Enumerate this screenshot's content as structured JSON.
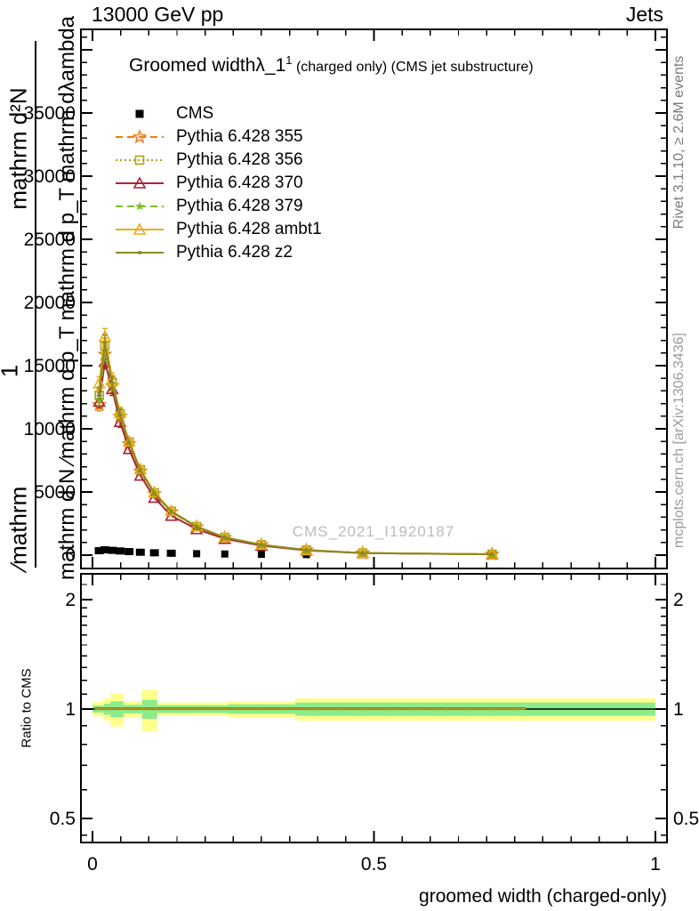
{
  "header": {
    "left": "13000 GeV pp",
    "right": "Jets"
  },
  "main_panel": {
    "title": "Groomed width",
    "title_symbol": "λ_1",
    "title_superscript": "1",
    "title_suffix": " (charged only) (CMS jet substructure)",
    "watermark": "CMS_2021_I1920187",
    "y_label_fraction_top": "mathrm d²N",
    "y_label_one": "1",
    "y_label_fraction_bottom": "∕mathrm",
    "y_label_inner": "mathrm d N ∕mathrm d p_T mathrm d p_T mathrm dλambda"
  },
  "right_margin": {
    "rivet_text": "Rivet 3.1.10, ≥ 2.6M events",
    "mcplots_text": "mcplots.cern.ch [arXiv:1306.3436]"
  },
  "ratio_panel": {
    "y_label": "Ratio to CMS"
  },
  "x_axis": {
    "title": "groomed width (charged-only)"
  },
  "legend": [
    {
      "id": "cms",
      "label": "CMS",
      "color": "#000000",
      "marker": "filled-square",
      "line": "none"
    },
    {
      "id": "pythia-355",
      "label": "Pythia 6.428 355",
      "color": "#ee7b11",
      "marker": "open-star",
      "line": "dashed"
    },
    {
      "id": "pythia-356",
      "label": "Pythia 6.428 356",
      "color": "#a6a51c",
      "marker": "open-square",
      "line": "dotted"
    },
    {
      "id": "pythia-370",
      "label": "Pythia 6.428 370",
      "color": "#a92433",
      "marker": "open-triangle",
      "line": "solid"
    },
    {
      "id": "pythia-379",
      "label": "Pythia 6.428 379",
      "color": "#7dbd26",
      "marker": "filled-star",
      "line": "dashed"
    },
    {
      "id": "pythia-ambt1",
      "label": "Pythia 6.428 ambt1",
      "color": "#f2a918",
      "marker": "open-triangle",
      "line": "solid"
    },
    {
      "id": "pythia-z2",
      "label": "Pythia 6.428 z2",
      "color": "#8a8b1e",
      "marker": "dot",
      "line": "solid"
    }
  ],
  "chart_data": {
    "type": "line",
    "title": "Groomed width λ_1¹ (charged only) (CMS jet substructure)",
    "xlabel": "groomed width (charged-only)",
    "ylabel": "mathrm d²N / mathrm d p_T mathrm dλambda",
    "xlim": [
      -0.02,
      1.02
    ],
    "ylim": [
      0,
      41600
    ],
    "y_ticks": [
      0,
      5000,
      10000,
      15000,
      20000,
      25000,
      30000,
      35000
    ],
    "y_minor_step": 1000,
    "x_ticks": [
      0,
      0.5,
      1
    ],
    "x_tick_labels": [
      "0",
      "0.5",
      "1"
    ],
    "x_minor_step": 0.05,
    "x": [
      0.012,
      0.022,
      0.035,
      0.049,
      0.065,
      0.085,
      0.11,
      0.14,
      0.185,
      0.235,
      0.3,
      0.38,
      0.48,
      0.71
    ],
    "series": [
      {
        "id": "pythia-355",
        "name": "Pythia 6.428 355",
        "color": "#ee7b11",
        "line": "dashed",
        "marker": "open-star",
        "values": [
          11900,
          15900,
          13400,
          11000,
          8800,
          6640,
          4850,
          3410,
          2230,
          1385,
          812,
          396,
          168,
          69
        ]
      },
      {
        "id": "pythia-356",
        "name": "Pythia 6.428 356",
        "color": "#a6a51c",
        "line": "dotted",
        "marker": "open-square",
        "values": [
          12650,
          16550,
          13700,
          11200,
          8950,
          6760,
          4930,
          3470,
          2260,
          1408,
          824,
          402,
          171,
          70
        ]
      },
      {
        "id": "pythia-370",
        "name": "Pythia 6.428 370",
        "color": "#a92433",
        "line": "solid",
        "marker": "open-triangle",
        "values": [
          12150,
          15300,
          13150,
          10550,
          8400,
          6300,
          4550,
          3120,
          2060,
          1290,
          760,
          370,
          158,
          64
        ]
      },
      {
        "id": "pythia-379",
        "name": "Pythia 6.428 379",
        "color": "#7dbd26",
        "line": "dashed",
        "marker": "filled-star",
        "values": [
          12350,
          16200,
          13550,
          11050,
          8850,
          6700,
          4890,
          3440,
          2245,
          1398,
          818,
          399,
          169,
          70
        ]
      },
      {
        "id": "pythia-ambt1",
        "name": "Pythia 6.428 ambt1",
        "color": "#f2a918",
        "line": "solid",
        "marker": "open-triangle",
        "values": [
          13600,
          17300,
          13900,
          11250,
          9000,
          6810,
          4960,
          3490,
          2275,
          1415,
          828,
          404,
          172,
          71
        ]
      },
      {
        "id": "pythia-z2",
        "name": "Pythia 6.428 z2",
        "color": "#8a8b1e",
        "line": "solid",
        "marker": "dot",
        "values": [
          12800,
          16800,
          13600,
          11100,
          8900,
          6700,
          4900,
          3450,
          2250,
          1400,
          820,
          400,
          170,
          70
        ]
      }
    ],
    "cms_data": {
      "id": "cms",
      "name": "CMS",
      "color": "#000000",
      "marker": "filled-square",
      "values": [
        350,
        420,
        380,
        330,
        280,
        230,
        185,
        150,
        115,
        90,
        65,
        45,
        30,
        18
      ]
    },
    "ratio": {
      "scale": "log",
      "range": [
        0.43,
        2.35
      ],
      "ticks": [
        0.5,
        1,
        2
      ],
      "tick_labels": [
        "0.5",
        "1",
        "2"
      ],
      "minor_ticks": [
        0.45,
        0.6,
        0.7,
        0.8,
        0.9,
        1.1,
        1.2,
        1.3,
        1.4,
        1.5,
        1.6,
        1.7,
        1.8,
        1.9,
        2.2
      ],
      "unity_line": 1.0,
      "band_colors": {
        "outer": "#ffff8c",
        "inner": "#8cec8c"
      },
      "band_segments": [
        {
          "x0": 0.0,
          "x1": 0.02,
          "outer": 0.045,
          "inner": 0.022
        },
        {
          "x0": 0.02,
          "x1": 0.032,
          "outer": 0.07,
          "inner": 0.035
        },
        {
          "x0": 0.032,
          "x1": 0.055,
          "outer": 0.105,
          "inner": 0.05
        },
        {
          "x0": 0.055,
          "x1": 0.088,
          "outer": 0.05,
          "inner": 0.027
        },
        {
          "x0": 0.088,
          "x1": 0.115,
          "outer": 0.13,
          "inner": 0.06
        },
        {
          "x0": 0.115,
          "x1": 0.24,
          "outer": 0.042,
          "inner": 0.025
        },
        {
          "x0": 0.24,
          "x1": 0.36,
          "outer": 0.05,
          "inner": 0.03
        },
        {
          "x0": 0.36,
          "x1": 1.0,
          "outer": 0.07,
          "inner": 0.042
        }
      ],
      "series_ratio": [
        {
          "id": "pythia-355",
          "value": 1.004
        },
        {
          "id": "pythia-356",
          "value": 0.998
        },
        {
          "id": "pythia-370",
          "value": 1.006
        },
        {
          "id": "pythia-379",
          "value": 0.996
        },
        {
          "id": "pythia-ambt1",
          "value": 1.002
        },
        {
          "id": "pythia-z2",
          "value": 1.0
        }
      ]
    }
  }
}
